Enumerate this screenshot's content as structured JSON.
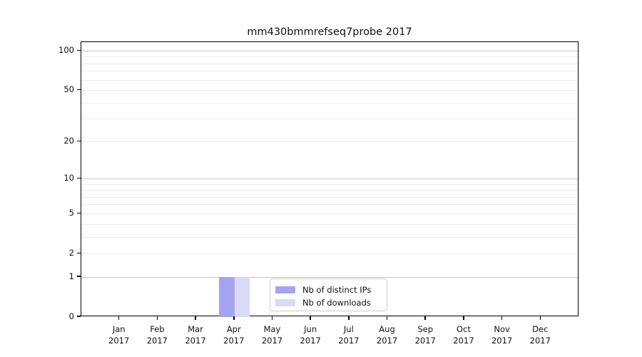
{
  "chart_data": {
    "type": "bar",
    "title": "mm430bmmrefseq7probe 2017",
    "categories": [
      "Jan 2017",
      "Feb 2017",
      "Mar 2017",
      "Apr 2017",
      "May 2017",
      "Jun 2017",
      "Jul 2017",
      "Aug 2017",
      "Sep 2017",
      "Oct 2017",
      "Nov 2017",
      "Dec 2017"
    ],
    "x_tick_months": [
      "Jan",
      "Feb",
      "Mar",
      "Apr",
      "May",
      "Jun",
      "Jul",
      "Aug",
      "Sep",
      "Oct",
      "Nov",
      "Dec"
    ],
    "x_tick_year": "2017",
    "series": [
      {
        "name": "Nb of distinct IPs",
        "color": "#a4a4f2",
        "values": [
          0,
          0,
          0,
          1,
          0,
          0,
          0,
          0,
          0,
          0,
          0,
          0
        ]
      },
      {
        "name": "Nb of downloads",
        "color": "#dadaf8",
        "values": [
          0,
          0,
          0,
          1,
          0,
          0,
          0,
          0,
          0,
          0,
          0,
          0
        ]
      }
    ],
    "y_axis": {
      "scale": "log10(value+1)",
      "tick_values": [
        0,
        1,
        2,
        5,
        10,
        20,
        50,
        100
      ],
      "tick_labels": [
        "0",
        "1",
        "2",
        "5",
        "10",
        "20",
        "50",
        "100"
      ],
      "minor_gridline_values": [
        3,
        4,
        6,
        7,
        8,
        9,
        30,
        40,
        60,
        70,
        80,
        90
      ],
      "emphasized_gridline_values": [
        1,
        10,
        100
      ],
      "ylim": [
        0,
        117
      ]
    },
    "grid": "on",
    "legend": {
      "position": "lower center"
    },
    "colors": {
      "major_grid": "#c6c6c6",
      "minor_grid": "#ececec",
      "axis": "#000000",
      "text": "#111111",
      "background": "#ffffff"
    }
  }
}
